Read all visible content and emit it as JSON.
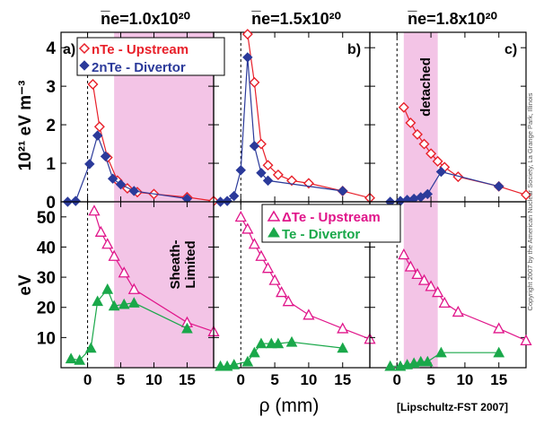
{
  "panel_titles": [
    "n̅e=1.0x10²⁰",
    "n̅e=1.5x10²⁰",
    "n̅e=1.8x10²⁰"
  ],
  "panel_letters": [
    "a)",
    "b)",
    "c)"
  ],
  "ylabel_top": "10²¹ eV m⁻³",
  "ylabel_bottom": "eV",
  "xlabel": "ρ (mm)",
  "citation": "[Lipschultz-FST 2007]",
  "copyright": "Copyright 2007 by the American Nuclear Society, La Grange Park, Illinois",
  "annotations": {
    "sheath": [
      "Sheath-",
      "Limited"
    ],
    "detached": "detached"
  },
  "legend_top": [
    "nTe - Upstream",
    "2nTe - Divertor"
  ],
  "legend_bottom": [
    "ΔTe - Upstream",
    "Te - Divertor"
  ],
  "colors": {
    "upstream_top": "#e8202a",
    "divertor_top": "#2b3a9a",
    "upstream_bottom": "#e0158a",
    "divertor_bottom": "#1aa84a",
    "shade": "#f3c4e6"
  },
  "chart_data": [
    {
      "type": "line",
      "panel": "top-a",
      "xlim": [
        -4,
        19
      ],
      "ylim": [
        0,
        4.4
      ],
      "yticks": [
        0,
        1,
        2,
        3,
        4
      ],
      "xticks": [
        0,
        5,
        10,
        15
      ],
      "shade": [
        4,
        19
      ],
      "vline": 0,
      "series": [
        {
          "name": "nTe - Upstream",
          "marker": "diamond-open",
          "x": [
            0.8,
            1.8,
            3.0,
            4.5,
            6.0,
            7.5,
            10.0,
            15.0,
            19.0
          ],
          "y": [
            3.05,
            1.95,
            1.15,
            0.55,
            0.35,
            0.25,
            0.2,
            0.12,
            0.02
          ]
        },
        {
          "name": "2nTe - Divertor",
          "marker": "diamond-filled",
          "x": [
            -3.0,
            -1.8,
            0.3,
            1.5,
            2.7,
            3.8,
            5.0,
            7.0,
            15.0
          ],
          "y": [
            0.0,
            0.02,
            0.98,
            1.72,
            1.18,
            0.6,
            0.45,
            0.28,
            0.08
          ]
        }
      ]
    },
    {
      "type": "line",
      "panel": "top-b",
      "xlim": [
        -4,
        19
      ],
      "ylim": [
        0,
        4.4
      ],
      "xticks": [
        0,
        5,
        10,
        15
      ],
      "vline": 0,
      "series": [
        {
          "name": "nTe - Upstream",
          "marker": "diamond-open",
          "x": [
            1.0,
            2.0,
            3.0,
            4.0,
            5.5,
            7.5,
            10.0,
            15.0,
            19.0
          ],
          "y": [
            4.35,
            3.1,
            1.5,
            0.95,
            0.7,
            0.55,
            0.48,
            0.28,
            0.1
          ]
        },
        {
          "name": "2nTe - Divertor",
          "marker": "diamond-filled",
          "x": [
            -3.0,
            -2.0,
            -1.0,
            0.0,
            1.0,
            2.0,
            3.0,
            4.0,
            15.0
          ],
          "y": [
            0.0,
            0.02,
            0.15,
            0.82,
            3.75,
            1.45,
            0.75,
            0.55,
            0.28
          ]
        }
      ]
    },
    {
      "type": "line",
      "panel": "top-c",
      "xlim": [
        -4,
        19
      ],
      "ylim": [
        0,
        4.4
      ],
      "xticks": [
        0,
        5,
        10,
        15
      ],
      "shade": [
        1,
        6
      ],
      "vline": 0,
      "series": [
        {
          "name": "nTe - Upstream",
          "marker": "diamond-open",
          "x": [
            1.0,
            2.0,
            3.0,
            4.0,
            5.0,
            6.0,
            7.0,
            9.0,
            15.0,
            19.0
          ],
          "y": [
            2.45,
            2.05,
            1.75,
            1.5,
            1.25,
            1.05,
            0.9,
            0.65,
            0.4,
            0.18
          ]
        },
        {
          "name": "2nTe - Divertor",
          "marker": "diamond-filled",
          "x": [
            -1.0,
            0.5,
            1.5,
            2.5,
            3.5,
            4.5,
            6.5,
            15.0
          ],
          "y": [
            0.0,
            0.02,
            0.05,
            0.08,
            0.12,
            0.2,
            0.78,
            0.4
          ]
        }
      ]
    },
    {
      "type": "line",
      "panel": "bottom-a",
      "xlim": [
        -4,
        19
      ],
      "ylim": [
        0,
        55
      ],
      "yticks": [
        10,
        20,
        30,
        40,
        50
      ],
      "xticks": [
        0,
        5,
        10,
        15
      ],
      "shade": [
        4,
        19
      ],
      "vline": 0,
      "series": [
        {
          "name": "ΔTe - Upstream",
          "marker": "triangle-open",
          "x": [
            1.0,
            2.0,
            3.0,
            4.0,
            5.5,
            7.0,
            15.0,
            19.0
          ],
          "y": [
            52.0,
            45.0,
            41.0,
            37.0,
            31.5,
            26.0,
            15.0,
            12.0
          ]
        },
        {
          "name": "Te - Divertor",
          "marker": "triangle-filled",
          "x": [
            -2.5,
            -1.2,
            0.5,
            1.5,
            3.0,
            4.0,
            5.5,
            7.0,
            15.0
          ],
          "y": [
            3.0,
            2.5,
            6.5,
            22.0,
            26.0,
            20.5,
            21.0,
            21.5,
            13.0
          ]
        }
      ]
    },
    {
      "type": "line",
      "panel": "bottom-b",
      "xlim": [
        -4,
        19
      ],
      "ylim": [
        0,
        55
      ],
      "xticks": [
        0,
        5,
        10,
        15
      ],
      "vline": 0,
      "series": [
        {
          "name": "ΔTe - Upstream",
          "marker": "triangle-open",
          "x": [
            0.0,
            1.0,
            2.0,
            3.0,
            4.0,
            5.0,
            6.0,
            7.0,
            10.0,
            15.0,
            19.0
          ],
          "y": [
            50.0,
            46.0,
            41.0,
            37.0,
            33.0,
            29.0,
            25.0,
            22.0,
            17.5,
            13.0,
            9.5
          ]
        },
        {
          "name": "Te - Divertor",
          "marker": "triangle-filled",
          "x": [
            -3.0,
            -2.0,
            -1.0,
            1.0,
            2.0,
            3.0,
            4.5,
            5.5,
            7.5,
            15.0
          ],
          "y": [
            0.5,
            0.5,
            1.0,
            2.0,
            5.0,
            8.0,
            8.0,
            8.0,
            8.5,
            6.5
          ]
        }
      ]
    },
    {
      "type": "line",
      "panel": "bottom-c",
      "xlim": [
        -4,
        19
      ],
      "ylim": [
        0,
        55
      ],
      "xticks": [
        0,
        5,
        10,
        15
      ],
      "shade": [
        1,
        6
      ],
      "vline": 0,
      "series": [
        {
          "name": "ΔTe - Upstream",
          "marker": "triangle-open",
          "x": [
            1.0,
            2.0,
            3.0,
            4.0,
            5.0,
            6.0,
            7.0,
            9.0,
            15.0,
            19.0
          ],
          "y": [
            37.5,
            33.5,
            31.0,
            29.0,
            27.0,
            25.0,
            21.5,
            18.5,
            13.0,
            9.0
          ]
        },
        {
          "name": "Te - Divertor",
          "marker": "triangle-filled",
          "x": [
            -1.0,
            0.5,
            1.5,
            2.5,
            3.5,
            4.5,
            6.5,
            15.0
          ],
          "y": [
            0.5,
            0.5,
            1.0,
            1.5,
            2.0,
            2.0,
            5.0,
            5.0
          ]
        }
      ]
    }
  ]
}
